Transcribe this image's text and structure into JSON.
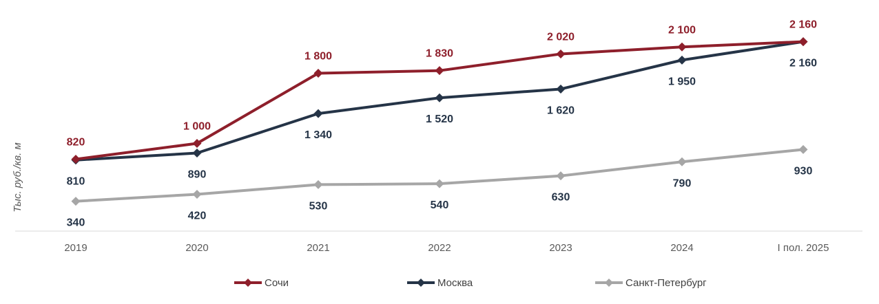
{
  "chart_data": {
    "type": "line",
    "ylabel": "Тыс. руб./кв. м",
    "xlabel": "",
    "categories": [
      "2019",
      "2020",
      "2021",
      "2022",
      "2023",
      "2024",
      "I пол. 2025"
    ],
    "ylim": [
      0,
      2300
    ],
    "grid": false,
    "legend_position": "bottom",
    "series": [
      {
        "name": "Сочи",
        "color": "#8E1F2B",
        "values": [
          820,
          1000,
          1800,
          1830,
          2020,
          2100,
          2160
        ],
        "labels": [
          "820",
          "1 000",
          "1 800",
          "1 830",
          "2 020",
          "2 100",
          "2 160"
        ],
        "label_position": "above"
      },
      {
        "name": "Москва",
        "color": "#253447",
        "values": [
          810,
          890,
          1340,
          1520,
          1620,
          1950,
          2160
        ],
        "labels": [
          "810",
          "890",
          "1 340",
          "1 520",
          "1 620",
          "1 950",
          "2 160"
        ],
        "label_position": "below"
      },
      {
        "name": "Санкт-Петербург",
        "color": "#A6A6A6",
        "values": [
          340,
          420,
          530,
          540,
          630,
          790,
          930
        ],
        "labels": [
          "340",
          "420",
          "530",
          "540",
          "630",
          "790",
          "930"
        ],
        "label_position": "below"
      }
    ]
  }
}
